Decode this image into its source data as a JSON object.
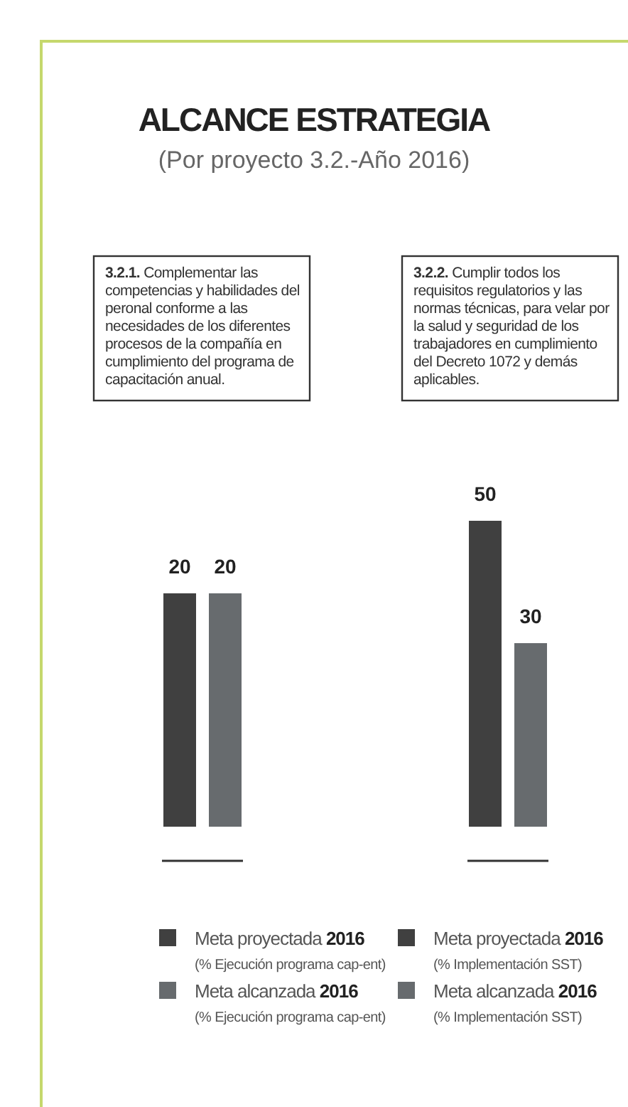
{
  "chart_data": [
    {
      "type": "bar",
      "title": "ALCANCE ESTRATEGIA",
      "subtitle": "(Por proyecto 3.2.-Año 2016)",
      "annotations": [
        "3.2.1. Complementar las competencias y habilidades del peronal conforme a las necesidades de los diferentes procesos de la compañía en cumplimiento del programa de capacitación anual."
      ],
      "categories": [
        null
      ],
      "data_labels": true,
      "legend": "bottom",
      "series": [
        {
          "name": "Meta proyectada 2016 (% Ejecución programa cap-ent)",
          "color": "#404040",
          "values": [
            20
          ]
        },
        {
          "name": "Meta alcanzada 2016 (% Ejecución programa cap-ent)",
          "color": "#676b6e",
          "values": [
            20
          ]
        }
      ]
    },
    {
      "type": "bar",
      "annotations": [
        "3.2.2. Cumplir todos los requisitos regulatorios y las normas técnicas, para velar por la salud y seguridad de los trabajadores en cumplimiento del Decreto 1072 y demás aplicables."
      ],
      "categories": [
        null
      ],
      "data_labels": true,
      "legend": "bottom",
      "series": [
        {
          "name": "Meta proyectada 2016 (% Implementación SST)",
          "color": "#404040",
          "values": [
            50
          ]
        },
        {
          "name": "Meta alcanzada 2016 (% Implementación SST)",
          "color": "#676b6e",
          "values": [
            30
          ]
        }
      ]
    }
  ]
}
